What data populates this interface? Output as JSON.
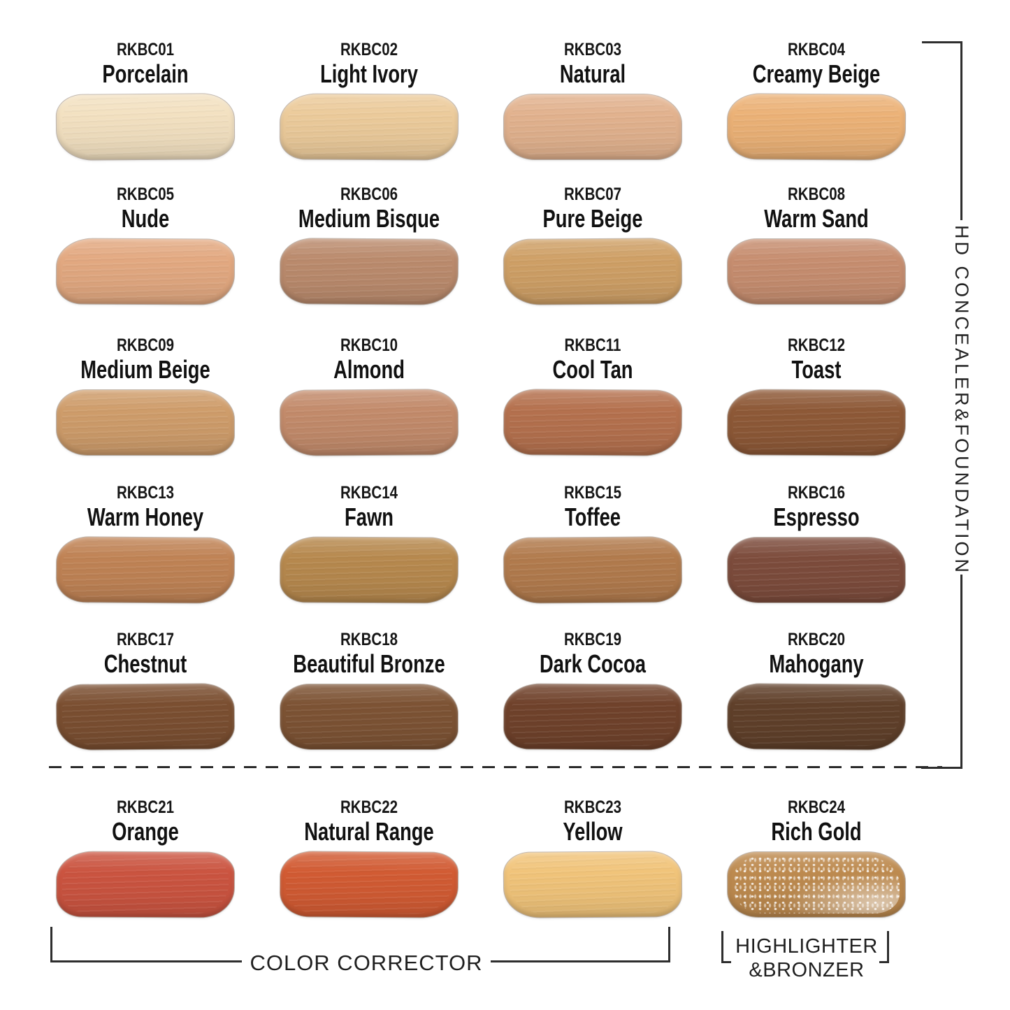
{
  "side_label": "HD CONCEALER&FOUNDATION",
  "groups": {
    "color_corrector": "COLOR CORRECTOR",
    "highlighter_line1": "HIGHLIGHTER",
    "highlighter_line2": "&BRONZER"
  },
  "colors": {
    "background": "#ffffff",
    "ink": "#1b1b1b",
    "bracket_line": "#2e2e2e"
  },
  "shades": [
    {
      "code": "RKBC01",
      "name": "Porcelain",
      "color": "#f3e1c1"
    },
    {
      "code": "RKBC02",
      "name": "Light Ivory",
      "color": "#eccb9b"
    },
    {
      "code": "RKBC03",
      "name": "Natural",
      "color": "#e2b28e"
    },
    {
      "code": "RKBC04",
      "name": "Creamy Beige",
      "color": "#ecb277"
    },
    {
      "code": "RKBC05",
      "name": "Nude",
      "color": "#e3a981"
    },
    {
      "code": "RKBC06",
      "name": "Medium Bisque",
      "color": "#bb8b6d"
    },
    {
      "code": "RKBC07",
      "name": "Pure Beige",
      "color": "#cfa066"
    },
    {
      "code": "RKBC08",
      "name": "Warm Sand",
      "color": "#c78e70"
    },
    {
      "code": "RKBC09",
      "name": "Medium Beige",
      "color": "#cf9d6b"
    },
    {
      "code": "RKBC10",
      "name": "Almond",
      "color": "#c38b6b"
    },
    {
      "code": "RKBC11",
      "name": "Cool Tan",
      "color": "#b5714e"
    },
    {
      "code": "RKBC12",
      "name": "Toast",
      "color": "#8e5937"
    },
    {
      "code": "RKBC13",
      "name": "Warm Honey",
      "color": "#c08355"
    },
    {
      "code": "RKBC14",
      "name": "Fawn",
      "color": "#b7894e"
    },
    {
      "code": "RKBC15",
      "name": "Toffee",
      "color": "#b27b4d"
    },
    {
      "code": "RKBC16",
      "name": "Espresso",
      "color": "#7d4c3c"
    },
    {
      "code": "RKBC17",
      "name": "Chestnut",
      "color": "#7b4f31"
    },
    {
      "code": "RKBC18",
      "name": "Beautiful Bronze",
      "color": "#7d5334"
    },
    {
      "code": "RKBC19",
      "name": "Dark Cocoa",
      "color": "#70422b"
    },
    {
      "code": "RKBC20",
      "name": "Mahogany",
      "color": "#60402a"
    },
    {
      "code": "RKBC21",
      "name": "Orange",
      "color": "#cb5440"
    },
    {
      "code": "RKBC22",
      "name": "Natural Range",
      "color": "#d25b33"
    },
    {
      "code": "RKBC23",
      "name": "Yellow",
      "color": "#f1c47a"
    },
    {
      "code": "RKBC24",
      "name": "Rich Gold",
      "color": "#bd8a4f"
    }
  ]
}
